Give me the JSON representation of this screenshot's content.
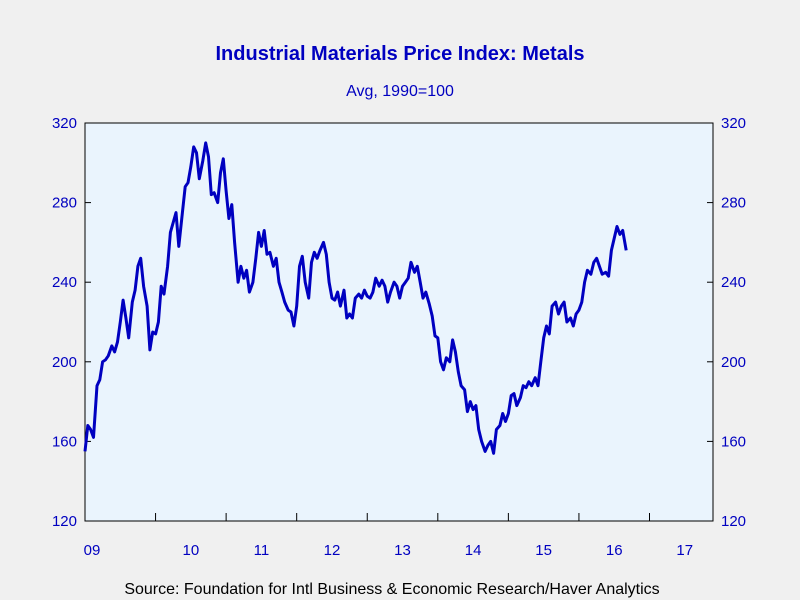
{
  "chart_data": {
    "type": "line",
    "title": "Industrial Materials Price Index: Metals",
    "subtitle": "Avg, 1990=100",
    "source": "Source:  Foundation for Intl Business & Economic Research/Haver Analytics",
    "ylim": [
      120,
      320
    ],
    "yticks": [
      120,
      160,
      200,
      240,
      280,
      320
    ],
    "y_axis": "both sides",
    "xlim": [
      2009.0,
      2017.9
    ],
    "xtick_labels": [
      "09",
      "10",
      "11",
      "12",
      "13",
      "14",
      "15",
      "16",
      "17"
    ],
    "grid": false,
    "colors": {
      "background": "#f0f0f0",
      "plot_background": "#eaf4fd",
      "line": "#0000c0",
      "text": "#0000c0",
      "title": "#0000c0",
      "axis": "#000000"
    },
    "series": [
      {
        "points": [
          [
            2009.0,
            155
          ],
          [
            2009.04,
            168
          ],
          [
            2009.08,
            166
          ],
          [
            2009.12,
            162
          ],
          [
            2009.17,
            188
          ],
          [
            2009.21,
            191
          ],
          [
            2009.25,
            200
          ],
          [
            2009.29,
            201
          ],
          [
            2009.33,
            203
          ],
          [
            2009.38,
            208
          ],
          [
            2009.42,
            205
          ],
          [
            2009.46,
            210
          ],
          [
            2009.5,
            220
          ],
          [
            2009.54,
            231
          ],
          [
            2009.58,
            222
          ],
          [
            2009.62,
            212
          ],
          [
            2009.67,
            230
          ],
          [
            2009.71,
            236
          ],
          [
            2009.75,
            248
          ],
          [
            2009.79,
            252
          ],
          [
            2009.83,
            238
          ],
          [
            2009.88,
            228
          ],
          [
            2009.92,
            206
          ],
          [
            2009.96,
            215
          ],
          [
            2010.0,
            214
          ],
          [
            2010.04,
            220
          ],
          [
            2010.08,
            238
          ],
          [
            2010.12,
            234
          ],
          [
            2010.17,
            248
          ],
          [
            2010.21,
            265
          ],
          [
            2010.25,
            270
          ],
          [
            2010.29,
            275
          ],
          [
            2010.33,
            258
          ],
          [
            2010.38,
            275
          ],
          [
            2010.42,
            288
          ],
          [
            2010.46,
            290
          ],
          [
            2010.5,
            298
          ],
          [
            2010.54,
            308
          ],
          [
            2010.58,
            305
          ],
          [
            2010.62,
            292
          ],
          [
            2010.67,
            301
          ],
          [
            2010.71,
            310
          ],
          [
            2010.75,
            303
          ],
          [
            2010.79,
            284
          ],
          [
            2010.83,
            285
          ],
          [
            2010.88,
            280
          ],
          [
            2010.92,
            295
          ],
          [
            2010.96,
            302
          ],
          [
            2011.0,
            286
          ],
          [
            2011.04,
            272
          ],
          [
            2011.08,
            279
          ],
          [
            2011.12,
            260
          ],
          [
            2011.17,
            240
          ],
          [
            2011.21,
            248
          ],
          [
            2011.25,
            242
          ],
          [
            2011.29,
            246
          ],
          [
            2011.33,
            235
          ],
          [
            2011.38,
            240
          ],
          [
            2011.42,
            252
          ],
          [
            2011.46,
            265
          ],
          [
            2011.5,
            258
          ],
          [
            2011.54,
            266
          ],
          [
            2011.58,
            254
          ],
          [
            2011.62,
            255
          ],
          [
            2011.67,
            248
          ],
          [
            2011.71,
            252
          ],
          [
            2011.75,
            240
          ],
          [
            2011.79,
            235
          ],
          [
            2011.83,
            230
          ],
          [
            2011.88,
            226
          ],
          [
            2011.92,
            225
          ],
          [
            2011.96,
            218
          ],
          [
            2012.0,
            228
          ],
          [
            2012.04,
            248
          ],
          [
            2012.08,
            253
          ],
          [
            2012.12,
            240
          ],
          [
            2012.17,
            232
          ],
          [
            2012.21,
            250
          ],
          [
            2012.25,
            255
          ],
          [
            2012.29,
            252
          ],
          [
            2012.33,
            256
          ],
          [
            2012.38,
            260
          ],
          [
            2012.42,
            254
          ],
          [
            2012.46,
            240
          ],
          [
            2012.5,
            232
          ],
          [
            2012.54,
            231
          ],
          [
            2012.58,
            235
          ],
          [
            2012.62,
            228
          ],
          [
            2012.67,
            236
          ],
          [
            2012.71,
            222
          ],
          [
            2012.75,
            224
          ],
          [
            2012.79,
            222
          ],
          [
            2012.83,
            232
          ],
          [
            2012.88,
            234
          ],
          [
            2012.92,
            232
          ],
          [
            2012.96,
            236
          ],
          [
            2013.0,
            233
          ],
          [
            2013.04,
            232
          ],
          [
            2013.08,
            235
          ],
          [
            2013.12,
            242
          ],
          [
            2013.17,
            238
          ],
          [
            2013.21,
            241
          ],
          [
            2013.25,
            238
          ],
          [
            2013.29,
            230
          ],
          [
            2013.33,
            235
          ],
          [
            2013.38,
            240
          ],
          [
            2013.42,
            238
          ],
          [
            2013.46,
            232
          ],
          [
            2013.5,
            238
          ],
          [
            2013.54,
            240
          ],
          [
            2013.58,
            242
          ],
          [
            2013.62,
            250
          ],
          [
            2013.67,
            245
          ],
          [
            2013.71,
            248
          ],
          [
            2013.75,
            240
          ],
          [
            2013.79,
            232
          ],
          [
            2013.83,
            235
          ],
          [
            2013.88,
            229
          ],
          [
            2013.92,
            223
          ],
          [
            2013.96,
            213
          ],
          [
            2014.0,
            212
          ],
          [
            2014.04,
            200
          ],
          [
            2014.08,
            196
          ],
          [
            2014.12,
            202
          ],
          [
            2014.17,
            200
          ],
          [
            2014.21,
            211
          ],
          [
            2014.25,
            205
          ],
          [
            2014.29,
            195
          ],
          [
            2014.33,
            188
          ],
          [
            2014.38,
            186
          ],
          [
            2014.42,
            175
          ],
          [
            2014.46,
            180
          ],
          [
            2014.5,
            176
          ],
          [
            2014.54,
            178
          ],
          [
            2014.58,
            166
          ],
          [
            2014.62,
            160
          ],
          [
            2014.67,
            155
          ],
          [
            2014.71,
            158
          ],
          [
            2014.75,
            160
          ],
          [
            2014.79,
            154
          ],
          [
            2014.83,
            166
          ],
          [
            2014.88,
            168
          ],
          [
            2014.92,
            174
          ],
          [
            2014.96,
            170
          ],
          [
            2015.0,
            174
          ],
          [
            2015.04,
            183
          ],
          [
            2015.08,
            184
          ],
          [
            2015.12,
            178
          ],
          [
            2015.17,
            182
          ],
          [
            2015.21,
            188
          ],
          [
            2015.25,
            187
          ],
          [
            2015.29,
            190
          ],
          [
            2015.33,
            188
          ],
          [
            2015.38,
            192
          ],
          [
            2015.42,
            188
          ],
          [
            2015.46,
            200
          ],
          [
            2015.5,
            212
          ],
          [
            2015.54,
            218
          ],
          [
            2015.58,
            214
          ],
          [
            2015.62,
            228
          ],
          [
            2015.67,
            230
          ],
          [
            2015.71,
            224
          ],
          [
            2015.75,
            228
          ],
          [
            2015.79,
            230
          ],
          [
            2015.83,
            220
          ],
          [
            2015.88,
            222
          ],
          [
            2015.92,
            218
          ],
          [
            2015.96,
            224
          ],
          [
            2016.0,
            226
          ],
          [
            2016.04,
            230
          ],
          [
            2016.08,
            240
          ],
          [
            2016.12,
            246
          ],
          [
            2016.17,
            244
          ],
          [
            2016.21,
            250
          ],
          [
            2016.25,
            252
          ],
          [
            2016.29,
            248
          ],
          [
            2016.33,
            244
          ],
          [
            2016.38,
            245
          ],
          [
            2016.42,
            243
          ],
          [
            2016.46,
            256
          ],
          [
            2016.5,
            262
          ],
          [
            2016.54,
            268
          ],
          [
            2016.58,
            264
          ],
          [
            2016.62,
            266
          ],
          [
            2016.67,
            256
          ]
        ]
      }
    ]
  }
}
